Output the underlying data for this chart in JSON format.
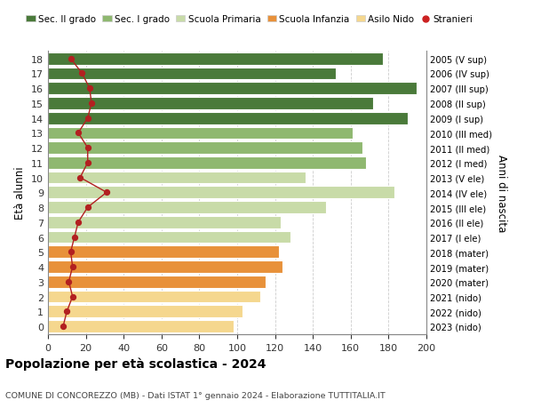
{
  "ages": [
    0,
    1,
    2,
    3,
    4,
    5,
    6,
    7,
    8,
    9,
    10,
    11,
    12,
    13,
    14,
    15,
    16,
    17,
    18
  ],
  "bar_values": [
    98,
    103,
    112,
    115,
    124,
    122,
    128,
    123,
    147,
    183,
    136,
    168,
    166,
    161,
    190,
    172,
    195,
    152,
    177
  ],
  "bar_colors": [
    "#f5d78e",
    "#f5d78e",
    "#f5d78e",
    "#e8913a",
    "#e8913a",
    "#e8913a",
    "#c8dba8",
    "#c8dba8",
    "#c8dba8",
    "#c8dba8",
    "#c8dba8",
    "#8fb870",
    "#8fb870",
    "#8fb870",
    "#4a7a3a",
    "#4a7a3a",
    "#4a7a3a",
    "#4a7a3a",
    "#4a7a3a"
  ],
  "stranieri_values": [
    8,
    10,
    13,
    11,
    13,
    12,
    14,
    16,
    21,
    31,
    17,
    21,
    21,
    16,
    21,
    23,
    22,
    18,
    12
  ],
  "right_labels": [
    "2023 (nido)",
    "2022 (nido)",
    "2021 (nido)",
    "2020 (mater)",
    "2019 (mater)",
    "2018 (mater)",
    "2017 (I ele)",
    "2016 (II ele)",
    "2015 (III ele)",
    "2014 (IV ele)",
    "2013 (V ele)",
    "2012 (I med)",
    "2011 (II med)",
    "2010 (III med)",
    "2009 (I sup)",
    "2008 (II sup)",
    "2007 (III sup)",
    "2006 (IV sup)",
    "2005 (V sup)"
  ],
  "ylabel_left": "Età alunni",
  "ylabel_right": "Anni di nascita",
  "title": "Popolazione per età scolastica - 2024",
  "subtitle": "COMUNE DI CONCOREZZO (MB) - Dati ISTAT 1° gennaio 2024 - Elaborazione TUTTITALIA.IT",
  "legend_labels": [
    "Sec. II grado",
    "Sec. I grado",
    "Scuola Primaria",
    "Scuola Infanzia",
    "Asilo Nido",
    "Stranieri"
  ],
  "legend_colors": [
    "#4a7a3a",
    "#8fb870",
    "#c8dba8",
    "#e8913a",
    "#f5d78e",
    "#cc2222"
  ],
  "xlim": [
    0,
    200
  ],
  "xticks": [
    0,
    20,
    40,
    60,
    80,
    100,
    120,
    140,
    160,
    180,
    200
  ],
  "bg_color": "#ffffff",
  "grid_color": "#cccccc",
  "bar_height": 0.82
}
